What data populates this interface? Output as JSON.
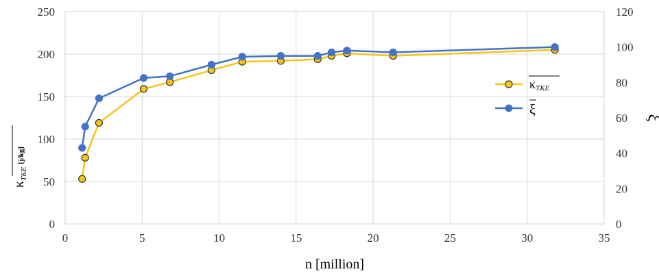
{
  "chart_data": {
    "type": "line",
    "xlabel": "n [million]",
    "ylabel": {
      "symbol": "κ",
      "subscript": "TKE",
      "unit": "[j/kg]"
    },
    "y2label": "ξ",
    "xlim": [
      0,
      35
    ],
    "ylim": [
      0,
      250
    ],
    "y2lim": [
      0,
      120
    ],
    "xticks": [
      0,
      5,
      10,
      15,
      20,
      25,
      30,
      35
    ],
    "yticks": [
      0,
      50,
      100,
      150,
      200,
      250
    ],
    "y2ticks": [
      0,
      20,
      40,
      60,
      80,
      100,
      120
    ],
    "grid": true,
    "legend_position": "right",
    "series": [
      {
        "name": "κ_TKE",
        "axis": "left",
        "color": "#F5C518",
        "marker_fill": "#F5C518",
        "marker_edge": "#333333",
        "x": [
          1.1,
          1.3,
          2.2,
          5.1,
          6.8,
          9.5,
          11.5,
          14.0,
          16.4,
          17.3,
          18.3,
          21.3,
          31.8
        ],
        "y": [
          53,
          78,
          119,
          159,
          167,
          181,
          191,
          192,
          194,
          198,
          201,
          198,
          205
        ]
      },
      {
        "name": "ξ",
        "axis": "right",
        "color": "#4472C4",
        "marker_fill": "#4472C4",
        "marker_edge": "#4472C4",
        "x": [
          1.1,
          1.3,
          2.2,
          5.1,
          6.8,
          9.5,
          11.5,
          14.0,
          16.4,
          17.3,
          18.3,
          21.3,
          31.8
        ],
        "y": [
          43,
          55,
          71,
          82.5,
          83.5,
          90,
          94.5,
          95,
          95,
          97,
          98,
          97,
          100
        ]
      }
    ]
  }
}
